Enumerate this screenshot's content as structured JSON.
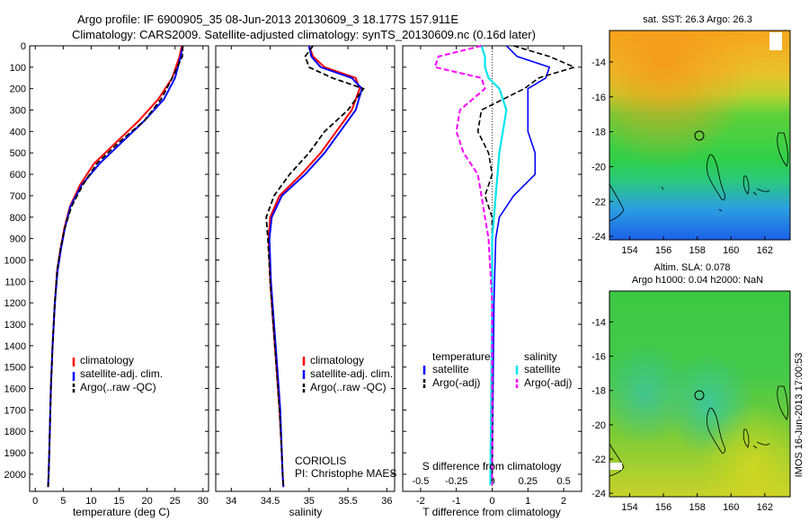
{
  "title_line1": "Argo profile: IF 6900905_35 08-Jun-2013 20130609_3 18.177S 157.911E",
  "title_line2": "Climatology: CARS2009. Satellite-adjusted climatology: synTS_20130609.nc (0.16d later)",
  "sst_title": "sat. SST: 26.3 Argo: 26.3",
  "sla_title_line1": "Altim. SLA: 0.078",
  "sla_title_line2": "Argo h1000: 0.04 h2000: NaN",
  "timestamp": "IMOS 16-Jun-2013 17:00:53",
  "coriolis_line1": "CORIOLIS",
  "coriolis_line2": "PI: Christophe MAES",
  "colors": {
    "climatology": "#ff0000",
    "satellite": "#0000ff",
    "argo": "#000000",
    "sat_diff": "#00e5ee",
    "argo_sal_diff": "#ff00ff"
  },
  "chart_data": [
    {
      "type": "line",
      "panel": "temperature",
      "xlabel": "temperature (deg C)",
      "ylabel": "",
      "xlim": [
        -1,
        31
      ],
      "ylim": [
        2080,
        0
      ],
      "xticks": [
        0,
        5,
        10,
        15,
        20,
        25,
        30
      ],
      "yticks": [
        0,
        100,
        200,
        300,
        400,
        500,
        600,
        700,
        800,
        900,
        1000,
        1100,
        1200,
        1300,
        1400,
        1500,
        1600,
        1700,
        1800,
        1900,
        2000
      ],
      "legend": [
        "climatology",
        "satellite-adj. clim.",
        "Argo(..raw -QC)"
      ],
      "series": [
        {
          "name": "climatology",
          "x": [
            26.2,
            25.8,
            24.5,
            22.0,
            18.5,
            14.5,
            10.5,
            8.0,
            6.2,
            5.2,
            4.5,
            3.9,
            3.5,
            3.1,
            2.8,
            2.6,
            2.5,
            2.4,
            2.3
          ],
          "y": [
            0,
            50,
            150,
            250,
            350,
            450,
            550,
            650,
            750,
            850,
            950,
            1050,
            1200,
            1400,
            1600,
            1800,
            1900,
            2000,
            2060
          ]
        },
        {
          "name": "satellite-adj. clim.",
          "x": [
            26.4,
            26.0,
            25.0,
            23.0,
            19.5,
            15.5,
            11.5,
            8.3,
            6.3,
            5.3,
            4.6,
            4.0,
            3.5,
            3.1,
            2.8,
            2.6,
            2.5,
            2.4,
            2.3
          ],
          "y": [
            0,
            50,
            150,
            250,
            350,
            450,
            550,
            650,
            750,
            850,
            950,
            1050,
            1200,
            1400,
            1600,
            1800,
            1900,
            2000,
            2060
          ]
        },
        {
          "name": "Argo(..raw -QC)",
          "x": [
            26.4,
            26.3,
            24.5,
            22.5,
            19.5,
            15.0,
            11.0,
            8.5,
            6.5,
            5.3,
            4.5,
            3.9,
            3.5,
            3.1,
            2.8,
            2.6,
            2.5,
            2.4,
            2.3
          ],
          "y": [
            0,
            50,
            150,
            250,
            350,
            450,
            550,
            650,
            750,
            850,
            950,
            1050,
            1200,
            1400,
            1600,
            1800,
            1900,
            2000,
            2060
          ]
        }
      ]
    },
    {
      "type": "line",
      "panel": "salinity",
      "xlabel": "salinity",
      "ylabel": "",
      "xlim": [
        33.8,
        36.1
      ],
      "ylim": [
        2080,
        0
      ],
      "xticks": [
        34,
        34.5,
        35,
        35.5,
        36
      ],
      "xticklabels": [
        "34",
        "34.5",
        "35",
        "35.5",
        "36"
      ],
      "legend": [
        "climatology",
        "satellite-adj. clim.",
        "Argo(..raw -QC)"
      ],
      "series": [
        {
          "name": "climatology",
          "x": [
            35.0,
            35.05,
            35.2,
            35.6,
            35.65,
            35.55,
            35.35,
            35.15,
            34.9,
            34.62,
            34.5,
            34.48,
            34.5,
            34.54,
            34.58,
            34.62,
            34.65,
            34.66,
            34.67
          ],
          "y": [
            0,
            50,
            100,
            150,
            200,
            300,
            400,
            500,
            600,
            700,
            800,
            900,
            1100,
            1300,
            1500,
            1700,
            1900,
            2000,
            2060
          ]
        },
        {
          "name": "satellite-adj. clim.",
          "x": [
            35.0,
            35.03,
            35.15,
            35.55,
            35.68,
            35.6,
            35.4,
            35.2,
            34.95,
            34.65,
            34.52,
            34.49,
            34.51,
            34.55,
            34.59,
            34.63,
            34.65,
            34.66,
            34.67
          ],
          "y": [
            0,
            50,
            100,
            150,
            200,
            300,
            400,
            500,
            600,
            700,
            800,
            900,
            1100,
            1300,
            1500,
            1700,
            1900,
            2000,
            2060
          ]
        },
        {
          "name": "Argo(..raw -QC)",
          "x": [
            35.05,
            34.95,
            35.0,
            35.3,
            35.7,
            35.5,
            35.2,
            35.0,
            34.75,
            34.55,
            34.45,
            34.47,
            34.5,
            34.54,
            34.58,
            34.62,
            34.65,
            34.66,
            34.67
          ],
          "y": [
            0,
            50,
            100,
            150,
            200,
            300,
            400,
            500,
            600,
            700,
            800,
            900,
            1100,
            1300,
            1500,
            1700,
            1900,
            2000,
            2060
          ]
        }
      ]
    },
    {
      "type": "line",
      "panel": "differences",
      "xlabel": "T difference from climatology",
      "x2label": "S difference from climatology",
      "xlim": [
        -2.5,
        2.5
      ],
      "ylim": [
        2080,
        0
      ],
      "xticks": [
        -2,
        -1,
        0,
        1,
        2
      ],
      "x2ticks": [
        -0.5,
        -0.25,
        0,
        0.25,
        0.5
      ],
      "legend_temperature_title": "temperature",
      "legend_salinity_title": "salinity",
      "legend": [
        "satellite",
        "Argo(-adj)",
        "satellite",
        "Argo(-adj)"
      ],
      "series": [
        {
          "name": "satellite",
          "group": "temperature",
          "x": [
            0.4,
            0.7,
            1.6,
            1.5,
            1.0,
            1.0,
            1.0,
            1.2,
            1.2,
            0.6,
            0.2,
            0.1,
            0.05,
            0.0
          ],
          "y": [
            0,
            50,
            100,
            150,
            200,
            300,
            400,
            500,
            600,
            700,
            800,
            900,
            1200,
            2050
          ]
        },
        {
          "name": "Argo(-adj)",
          "group": "temperature",
          "x": [
            0.6,
            1.6,
            2.3,
            1.3,
            0.9,
            -0.3,
            -0.4,
            -0.1,
            0.0,
            -0.2,
            0.0,
            0.0,
            0.0,
            0.0
          ],
          "y": [
            0,
            50,
            100,
            150,
            200,
            300,
            400,
            500,
            600,
            700,
            800,
            900,
            1200,
            2050
          ]
        },
        {
          "name": "satellite",
          "group": "salinity",
          "x": [
            -0.3,
            -0.2,
            -0.2,
            -0.1,
            0.2,
            0.4,
            0.3,
            0.2,
            0.15,
            0.1,
            0.05,
            0.0,
            0.0,
            -0.05
          ],
          "y": [
            0,
            50,
            100,
            150,
            200,
            300,
            400,
            500,
            600,
            700,
            800,
            900,
            1200,
            2050
          ]
        },
        {
          "name": "Argo(-adj)",
          "group": "salinity",
          "x": [
            -0.3,
            -1.5,
            -1.6,
            -0.3,
            -0.2,
            -0.9,
            -1.0,
            -0.8,
            -0.4,
            -0.3,
            -0.2,
            -0.1,
            0.0,
            0.0
          ],
          "y": [
            0,
            50,
            100,
            150,
            200,
            300,
            400,
            500,
            600,
            700,
            800,
            900,
            1200,
            2050
          ]
        }
      ]
    },
    {
      "type": "heatmap",
      "panel": "sst_map",
      "title": "sat. SST: 26.3 Argo: 26.3",
      "xlim": [
        152.8,
        163.5
      ],
      "ylim": [
        -24.2,
        -12.2
      ],
      "xticks": [
        154,
        156,
        158,
        160,
        162
      ],
      "yticks": [
        -14,
        -16,
        -18,
        -20,
        -22,
        -24
      ],
      "profile_marker": {
        "lon": 157.9,
        "lat": -18.2
      }
    },
    {
      "type": "heatmap",
      "panel": "sla_map",
      "title": "Altim. SLA: 0.078",
      "xlim": [
        152.8,
        163.5
      ],
      "ylim": [
        -24.2,
        -12.2
      ],
      "xticks": [
        154,
        156,
        158,
        160,
        162
      ],
      "yticks": [
        -14,
        -16,
        -18,
        -20,
        -22,
        -24
      ],
      "profile_marker": {
        "lon": 157.9,
        "lat": -18.2
      }
    }
  ]
}
